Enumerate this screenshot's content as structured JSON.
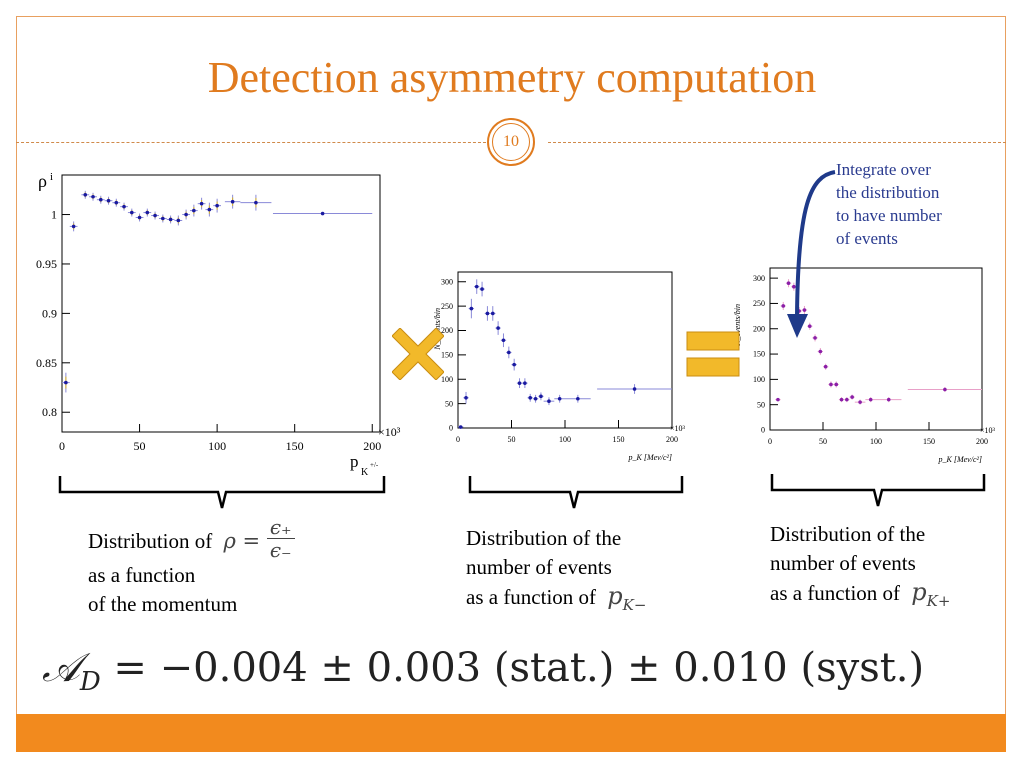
{
  "slide": {
    "title": "Detection asymmetry computation",
    "page_number": "10"
  },
  "note": {
    "lines": [
      "Integrate over",
      "the distribution",
      "to have number",
      "of events"
    ]
  },
  "operators": {
    "multiply": "multiply-icon",
    "equals": "equals-icon",
    "color": "#f2b92a"
  },
  "captions": {
    "left": {
      "line1": "Distribution of",
      "math_lhs": "ρ =",
      "num": "ϵ₊",
      "den": "ϵ₋",
      "line2": "as a function",
      "line3": "of the momentum"
    },
    "middle": {
      "line1": "Distribution of the",
      "line2": "number of events",
      "line3": "as a function of",
      "math": "p",
      "math_sub": "K−"
    },
    "right": {
      "line1": "Distribution of the",
      "line2": "number of events",
      "line3": "as a function of",
      "math": "p",
      "math_sub": "K+"
    }
  },
  "result": {
    "lhs": "𝒜",
    "lhs_sub": "D",
    "rhs": " = −0.004 ± 0.003 (stat.) ± 0.010 (syst.)"
  },
  "chart_data": [
    {
      "type": "scatter",
      "ylabel": "ρ",
      "ylabel_sub": "i",
      "xlabel": "p",
      "xlabel_sub": "K",
      "xlabel_sup": "+/-",
      "x_multiplier": "×10³",
      "xlim": [
        0,
        205
      ],
      "ylim": [
        0.78,
        1.04
      ],
      "xticks": [
        0,
        50,
        100,
        150,
        200
      ],
      "yticks": [
        0.8,
        0.85,
        0.9,
        0.95,
        1
      ],
      "color": "#1a1aa0",
      "points": [
        {
          "x": 2.5,
          "y": 0.83,
          "xerr": 2.5,
          "yerr": 0.01
        },
        {
          "x": 7.5,
          "y": 0.988,
          "xerr": 2.5,
          "yerr": 0.005
        },
        {
          "x": 15,
          "y": 1.02,
          "xerr": 2.5,
          "yerr": 0.004
        },
        {
          "x": 20,
          "y": 1.018,
          "xerr": 2.5,
          "yerr": 0.004
        },
        {
          "x": 25,
          "y": 1.015,
          "xerr": 2.5,
          "yerr": 0.004
        },
        {
          "x": 30,
          "y": 1.014,
          "xerr": 2.5,
          "yerr": 0.004
        },
        {
          "x": 35,
          "y": 1.012,
          "xerr": 2.5,
          "yerr": 0.004
        },
        {
          "x": 40,
          "y": 1.008,
          "xerr": 2.5,
          "yerr": 0.004
        },
        {
          "x": 45,
          "y": 1.002,
          "xerr": 2.5,
          "yerr": 0.004
        },
        {
          "x": 50,
          "y": 0.997,
          "xerr": 2.5,
          "yerr": 0.004
        },
        {
          "x": 55,
          "y": 1.002,
          "xerr": 2.5,
          "yerr": 0.004
        },
        {
          "x": 60,
          "y": 0.999,
          "xerr": 2.5,
          "yerr": 0.004
        },
        {
          "x": 65,
          "y": 0.996,
          "xerr": 2.5,
          "yerr": 0.004
        },
        {
          "x": 70,
          "y": 0.995,
          "xerr": 2.5,
          "yerr": 0.004
        },
        {
          "x": 75,
          "y": 0.994,
          "xerr": 2.5,
          "yerr": 0.005
        },
        {
          "x": 80,
          "y": 1.0,
          "xerr": 2.5,
          "yerr": 0.005
        },
        {
          "x": 85,
          "y": 1.004,
          "xerr": 2.5,
          "yerr": 0.006
        },
        {
          "x": 90,
          "y": 1.011,
          "xerr": 2.5,
          "yerr": 0.006
        },
        {
          "x": 95,
          "y": 1.005,
          "xerr": 2.5,
          "yerr": 0.007
        },
        {
          "x": 100,
          "y": 1.009,
          "xerr": 2.5,
          "yerr": 0.007
        },
        {
          "x": 110,
          "y": 1.013,
          "xerr": 5,
          "yerr": 0.007
        },
        {
          "x": 125,
          "y": 1.012,
          "xerr": 10,
          "yerr": 0.008
        },
        {
          "x": 168,
          "y": 1.001,
          "xerr": 32,
          "yerr": 0.0
        }
      ]
    },
    {
      "type": "scatter",
      "ylabel": "N_events/bin",
      "xlabel": "p_K [Mev/c²]",
      "x_multiplier": "×10³",
      "xlim": [
        0,
        200
      ],
      "ylim": [
        0,
        320
      ],
      "xticks": [
        0,
        50,
        100,
        150,
        200
      ],
      "yticks": [
        0,
        50,
        100,
        150,
        200,
        250,
        300
      ],
      "color": "#1a1aa0",
      "points": [
        {
          "x": 2.5,
          "y": 2,
          "xerr": 2.5,
          "yerr": 2
        },
        {
          "x": 7.5,
          "y": 62,
          "xerr": 2.5,
          "yerr": 12
        },
        {
          "x": 12.5,
          "y": 245,
          "xerr": 2.5,
          "yerr": 20
        },
        {
          "x": 17.5,
          "y": 290,
          "xerr": 2.5,
          "yerr": 15
        },
        {
          "x": 22.5,
          "y": 285,
          "xerr": 2.5,
          "yerr": 15
        },
        {
          "x": 27.5,
          "y": 235,
          "xerr": 2.5,
          "yerr": 15
        },
        {
          "x": 32.5,
          "y": 235,
          "xerr": 2.5,
          "yerr": 15
        },
        {
          "x": 37.5,
          "y": 205,
          "xerr": 2.5,
          "yerr": 14
        },
        {
          "x": 42.5,
          "y": 180,
          "xerr": 2.5,
          "yerr": 14
        },
        {
          "x": 47.5,
          "y": 155,
          "xerr": 2.5,
          "yerr": 12
        },
        {
          "x": 52.5,
          "y": 130,
          "xerr": 2.5,
          "yerr": 12
        },
        {
          "x": 57.5,
          "y": 92,
          "xerr": 2.5,
          "yerr": 10
        },
        {
          "x": 62.5,
          "y": 92,
          "xerr": 2.5,
          "yerr": 10
        },
        {
          "x": 67.5,
          "y": 62,
          "xerr": 2.5,
          "yerr": 8
        },
        {
          "x": 72.5,
          "y": 60,
          "xerr": 2.5,
          "yerr": 8
        },
        {
          "x": 77.5,
          "y": 65,
          "xerr": 2.5,
          "yerr": 8
        },
        {
          "x": 85,
          "y": 55,
          "xerr": 5,
          "yerr": 8
        },
        {
          "x": 95,
          "y": 60,
          "xerr": 5,
          "yerr": 8
        },
        {
          "x": 112,
          "y": 60,
          "xerr": 12,
          "yerr": 8
        },
        {
          "x": 165,
          "y": 80,
          "xerr": 35,
          "yerr": 10
        }
      ]
    },
    {
      "type": "scatter",
      "ylabel": "N_events/bin",
      "xlabel": "p_K [Mev/c²]",
      "x_multiplier": "×10³",
      "xlim": [
        0,
        200
      ],
      "ylim": [
        0,
        320
      ],
      "xticks": [
        0,
        50,
        100,
        150,
        200
      ],
      "yticks": [
        0,
        50,
        100,
        150,
        200,
        250,
        300
      ],
      "color": "#8a1fa8",
      "points": [
        {
          "x": 7.5,
          "y": 60,
          "xerr": 2.5,
          "yerr": 3
        },
        {
          "x": 12.5,
          "y": 245,
          "xerr": 2.5,
          "yerr": 8
        },
        {
          "x": 17.5,
          "y": 290,
          "xerr": 2.5,
          "yerr": 8
        },
        {
          "x": 22.5,
          "y": 283,
          "xerr": 2.5,
          "yerr": 8
        },
        {
          "x": 27.5,
          "y": 235,
          "xerr": 2.5,
          "yerr": 8
        },
        {
          "x": 32.5,
          "y": 237,
          "xerr": 2.5,
          "yerr": 8
        },
        {
          "x": 37.5,
          "y": 205,
          "xerr": 2.5,
          "yerr": 7
        },
        {
          "x": 42.5,
          "y": 182,
          "xerr": 2.5,
          "yerr": 7
        },
        {
          "x": 47.5,
          "y": 155,
          "xerr": 2.5,
          "yerr": 7
        },
        {
          "x": 52.5,
          "y": 125,
          "xerr": 2.5,
          "yerr": 6
        },
        {
          "x": 57.5,
          "y": 90,
          "xerr": 2.5,
          "yerr": 6
        },
        {
          "x": 62.5,
          "y": 90,
          "xerr": 2.5,
          "yerr": 6
        },
        {
          "x": 67.5,
          "y": 60,
          "xerr": 2.5,
          "yerr": 5
        },
        {
          "x": 72.5,
          "y": 60,
          "xerr": 2.5,
          "yerr": 5
        },
        {
          "x": 77.5,
          "y": 65,
          "xerr": 2.5,
          "yerr": 5
        },
        {
          "x": 85,
          "y": 55,
          "xerr": 5,
          "yerr": 5
        },
        {
          "x": 95,
          "y": 60,
          "xerr": 5,
          "yerr": 5
        },
        {
          "x": 112,
          "y": 60,
          "xerr": 12,
          "yerr": 5
        },
        {
          "x": 165,
          "y": 80,
          "xerr": 35,
          "yerr": 5
        }
      ]
    }
  ]
}
